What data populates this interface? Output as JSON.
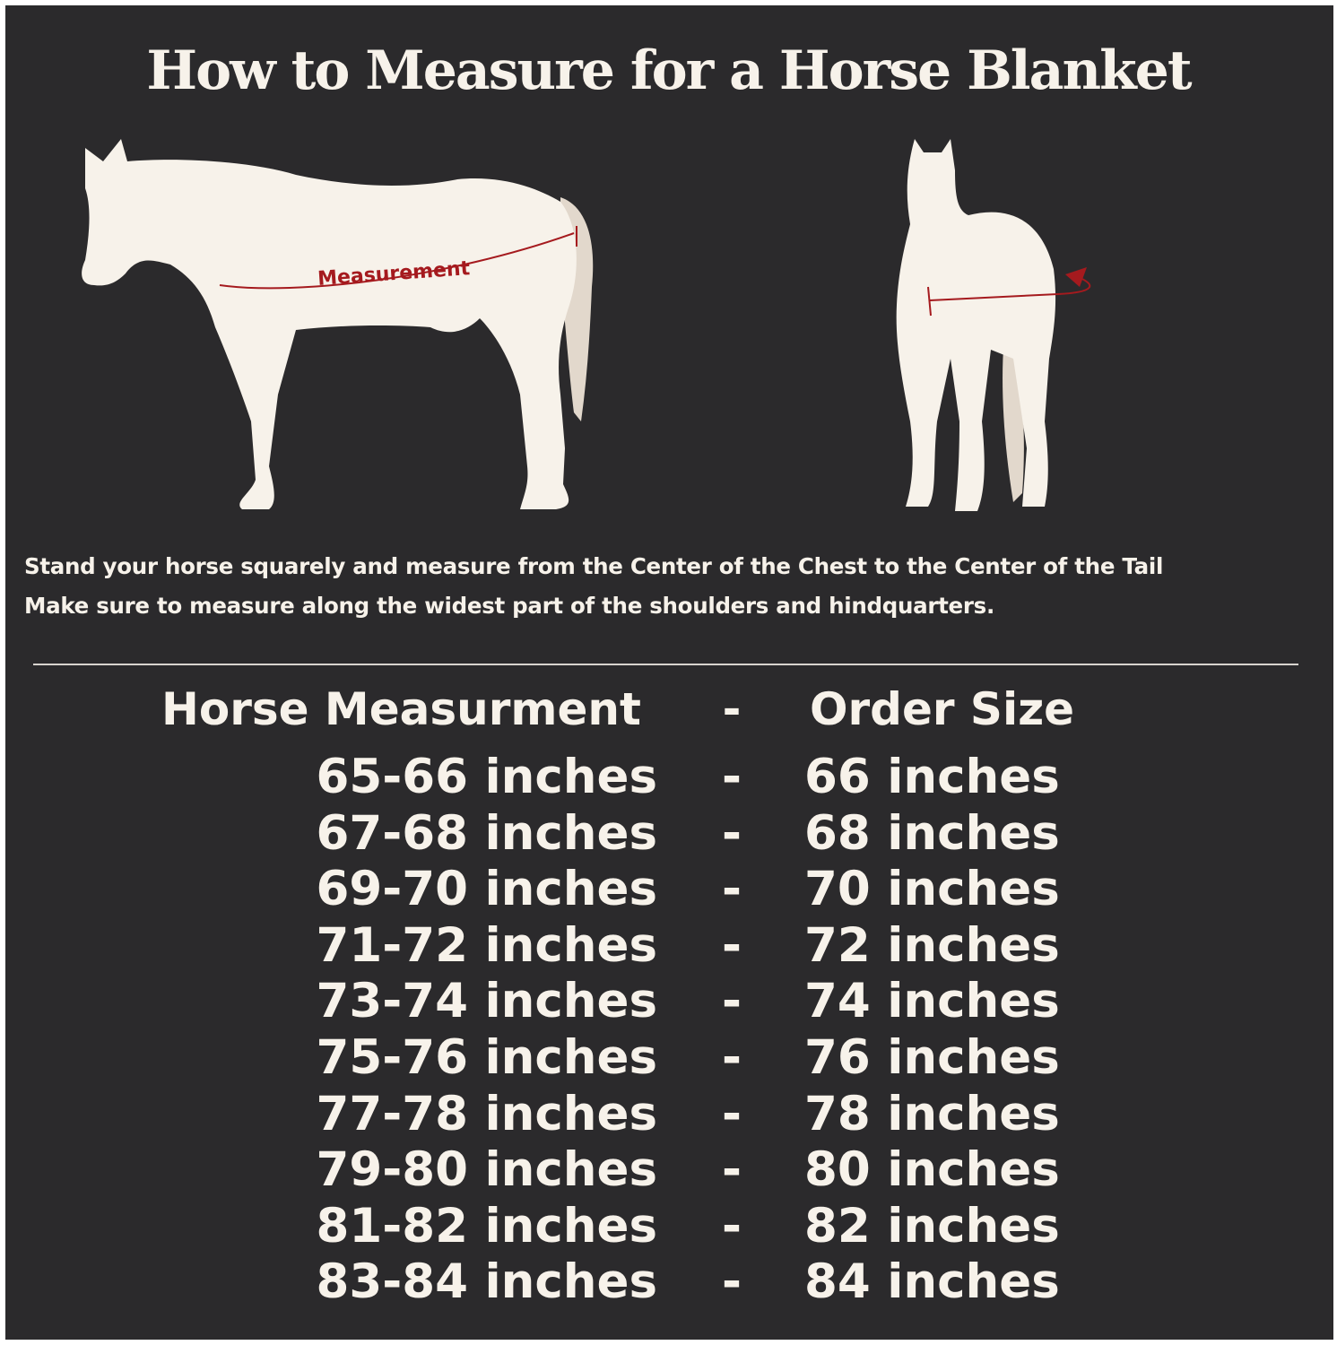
{
  "title": "How to Measure for a Horse Blanket",
  "side_view": {
    "label": "Measurement",
    "icon": "horse-side-silhouette-icon"
  },
  "front_view": {
    "icon": "horse-front-silhouette-icon"
  },
  "instructions": [
    "Stand your horse squarely and measure from the Center of the Chest to the Center of the Tail",
    "Make sure to measure along the widest part of the shoulders and hindquarters."
  ],
  "table": {
    "header": {
      "measurement": "Horse Measurment",
      "separator": "-",
      "size": "Order Size"
    },
    "rows": [
      {
        "measurement": "65-66 inches",
        "separator": "-",
        "size": "66 inches"
      },
      {
        "measurement": "67-68 inches",
        "separator": "-",
        "size": "68 inches"
      },
      {
        "measurement": "69-70 inches",
        "separator": "-",
        "size": "70 inches"
      },
      {
        "measurement": "71-72 inches",
        "separator": "-",
        "size": "72 inches"
      },
      {
        "measurement": "73-74 inches",
        "separator": "-",
        "size": "74 inches"
      },
      {
        "measurement": "75-76 inches",
        "separator": "-",
        "size": "76 inches"
      },
      {
        "measurement": "77-78 inches",
        "separator": "-",
        "size": "78 inches"
      },
      {
        "measurement": "79-80 inches",
        "separator": "-",
        "size": "80 inches"
      },
      {
        "measurement": "81-82 inches",
        "separator": "-",
        "size": "82 inches"
      },
      {
        "measurement": "83-84 inches",
        "separator": "-",
        "size": "84 inches"
      }
    ]
  },
  "colors": {
    "background": "#2b2a2c",
    "text": "#f7f2ea",
    "accent": "#a51a1e",
    "tail": "#e2d8cc"
  }
}
